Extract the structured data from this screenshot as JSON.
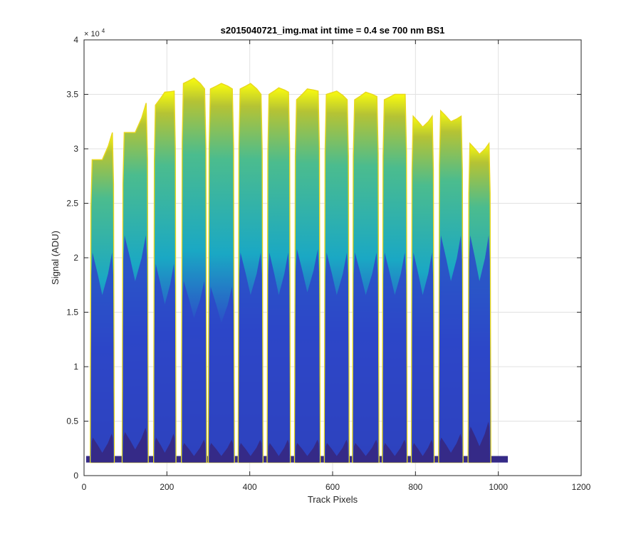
{
  "chart_data": {
    "type": "area",
    "title": "s2015040721_img.mat int time = 0.4 se  700 nm BS1",
    "xlabel": "Track Pixels",
    "ylabel": "Signal (ADU)",
    "y_exponent_label": "× 10",
    "y_exponent_power": "4",
    "xlim": [
      0,
      1200
    ],
    "ylim": [
      0,
      40000
    ],
    "xticks": [
      0,
      200,
      400,
      600,
      800,
      1000,
      1200
    ],
    "xtick_labels": [
      "0",
      "200",
      "400",
      "600",
      "800",
      "1000",
      "1200"
    ],
    "yticks": [
      0,
      5000,
      10000,
      15000,
      20000,
      25000,
      30000,
      35000,
      40000
    ],
    "ytick_labels": [
      "0",
      "0.5",
      "1",
      "1.5",
      "2",
      "2.5",
      "3",
      "3.5",
      "4"
    ],
    "grid": true,
    "colormap": [
      "#352a87",
      "#2d47c8",
      "#1aa8c4",
      "#4bbc8e",
      "#b5c334",
      "#f9fb0e"
    ],
    "data_xrange": [
      5,
      1023
    ],
    "baseline": 1200,
    "tracks": [
      {
        "x_start": 15,
        "x_end": 73,
        "peak_left": 29000,
        "peak_center": 29000,
        "peak_right": 31500,
        "mid_level": 19500,
        "low_level": 3500
      },
      {
        "x_start": 92,
        "x_end": 155,
        "peak_left": 31500,
        "peak_center": 31500,
        "peak_right": 34200,
        "mid_level": 21000,
        "low_level": 4000
      },
      {
        "x_start": 168,
        "x_end": 222,
        "peak_left": 34000,
        "peak_center": 35200,
        "peak_right": 35300,
        "mid_level": 18500,
        "low_level": 3500
      },
      {
        "x_start": 235,
        "x_end": 296,
        "peak_left": 36000,
        "peak_center": 36500,
        "peak_right": 35500,
        "mid_level": 17000,
        "low_level": 3000
      },
      {
        "x_start": 300,
        "x_end": 363,
        "peak_left": 35500,
        "peak_center": 36000,
        "peak_right": 35500,
        "mid_level": 16500,
        "low_level": 3000
      },
      {
        "x_start": 372,
        "x_end": 432,
        "peak_left": 35500,
        "peak_center": 36000,
        "peak_right": 35000,
        "mid_level": 19500,
        "low_level": 3000
      },
      {
        "x_start": 442,
        "x_end": 498,
        "peak_left": 35000,
        "peak_center": 35600,
        "peak_right": 35200,
        "mid_level": 19500,
        "low_level": 3000
      },
      {
        "x_start": 508,
        "x_end": 570,
        "peak_left": 34500,
        "peak_center": 35500,
        "peak_right": 35300,
        "mid_level": 19800,
        "low_level": 3000
      },
      {
        "x_start": 580,
        "x_end": 640,
        "peak_left": 35000,
        "peak_center": 35300,
        "peak_right": 34500,
        "mid_level": 19500,
        "low_level": 3000
      },
      {
        "x_start": 648,
        "x_end": 712,
        "peak_left": 34500,
        "peak_center": 35200,
        "peak_right": 34800,
        "mid_level": 19500,
        "low_level": 3000
      },
      {
        "x_start": 720,
        "x_end": 780,
        "peak_left": 34500,
        "peak_center": 35000,
        "peak_right": 35000,
        "mid_level": 19500,
        "low_level": 3000
      },
      {
        "x_start": 790,
        "x_end": 845,
        "peak_left": 33000,
        "peak_center": 32000,
        "peak_right": 33000,
        "mid_level": 19500,
        "low_level": 3000
      },
      {
        "x_start": 856,
        "x_end": 915,
        "peak_left": 33500,
        "peak_center": 32500,
        "peak_right": 33000,
        "mid_level": 21000,
        "low_level": 3500
      },
      {
        "x_start": 927,
        "x_end": 982,
        "peak_left": 30500,
        "peak_center": 29500,
        "peak_right": 30500,
        "mid_level": 21000,
        "low_level": 4500
      }
    ]
  }
}
